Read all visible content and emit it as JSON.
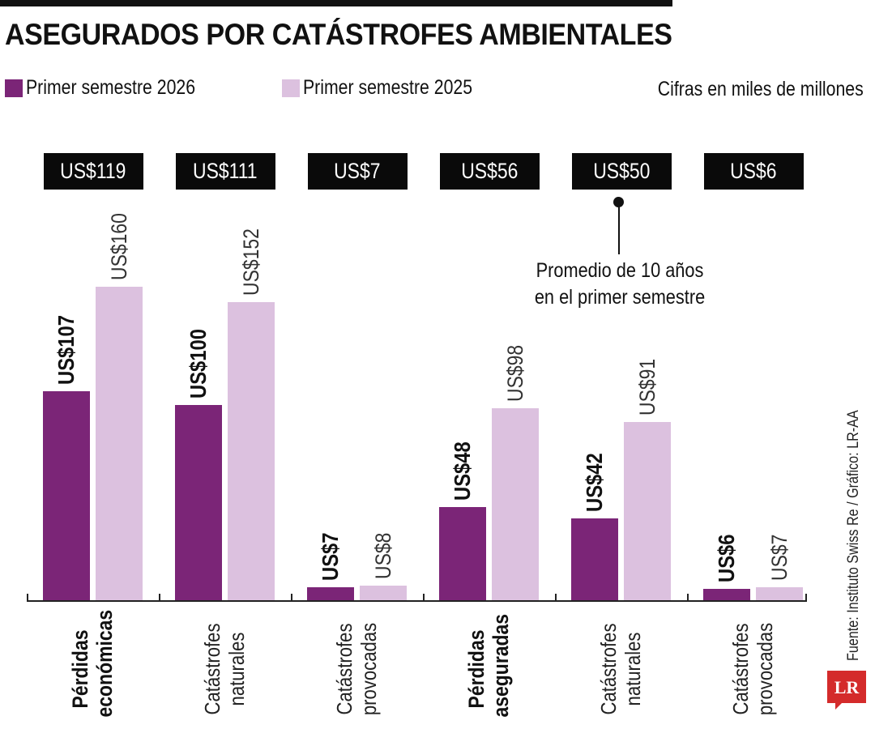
{
  "title": "ASEGURADOS POR CATÁSTROFES AMBIENTALES",
  "legend": {
    "series_2026": "Primer semestre 2026",
    "series_2025": "Primer semestre 2025"
  },
  "units_note": "Cifras en miles de millones",
  "average_note": "Promedio de 10 años en el primer semestre",
  "source": "Fuente: Instituto Swiss Re / Gráfico: LR-AA",
  "logo_text": "LR",
  "colors": {
    "series_2026": "#7b2577",
    "series_2025": "#dcc1df",
    "avg_box": "#0a0a0a",
    "logo": "#d42b2b"
  },
  "chart_data": {
    "type": "bar",
    "title": "ASEGURADOS POR CATÁSTROFES AMBIENTALES",
    "categories": [
      "Pérdidas económicas",
      "Catástrofes naturales",
      "Catástrofes provocadas",
      "Pérdidas aseguradas",
      "Catástrofes naturales",
      "Catástrofes provocadas"
    ],
    "category_lines": [
      [
        "Pérdidas",
        "económicas"
      ],
      [
        "Catástrofes",
        "naturales"
      ],
      [
        "Catástrofes",
        "provocadas"
      ],
      [
        "Pérdidas",
        "aseguradas"
      ],
      [
        "Catástrofes",
        "naturales"
      ],
      [
        "Catástrofes",
        "provocadas"
      ]
    ],
    "category_bold": [
      true,
      false,
      false,
      true,
      false,
      false
    ],
    "series": [
      {
        "name": "Primer semestre 2026",
        "values": [
          107,
          100,
          7,
          48,
          42,
          6
        ],
        "labels": [
          "US$107",
          "US$100",
          "US$7",
          "US$48",
          "US$42",
          "US$6"
        ]
      },
      {
        "name": "Primer semestre 2025",
        "values": [
          160,
          152,
          8,
          98,
          91,
          7
        ],
        "labels": [
          "US$160",
          "US$152",
          "US$8",
          "US$98",
          "US$91",
          "US$7"
        ]
      }
    ],
    "ten_year_average": {
      "values": [
        119,
        111,
        7,
        56,
        50,
        6
      ],
      "labels": [
        "US$119",
        "US$111",
        "US$7",
        "US$56",
        "US$50",
        "US$6"
      ]
    },
    "ylim": [
      0,
      160
    ],
    "xlabel": "",
    "ylabel": "",
    "grid": false,
    "legend_position": "top-left"
  }
}
